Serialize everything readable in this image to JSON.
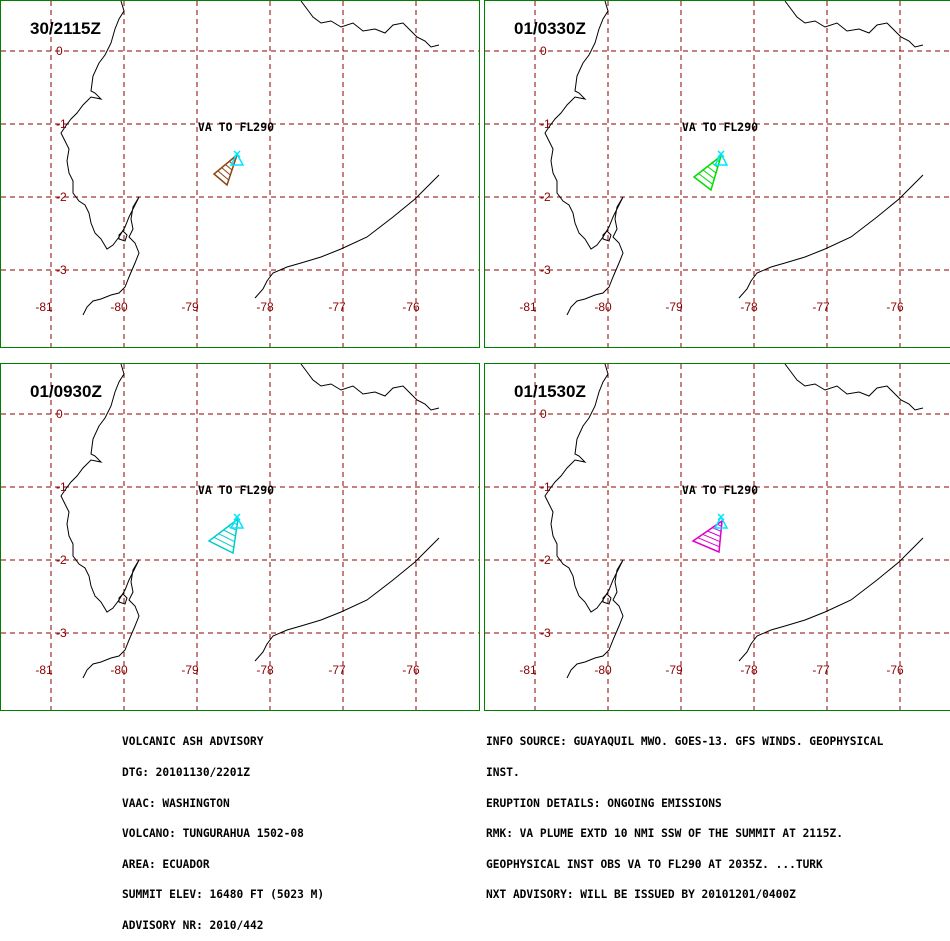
{
  "panels": [
    {
      "time": "30/2115Z",
      "plume_color": "#8b4513",
      "plume_label": "VA TO FL290"
    },
    {
      "time": "01/0330Z",
      "plume_color": "#00dd00",
      "plume_label": "VA TO FL290"
    },
    {
      "time": "01/0930Z",
      "plume_color": "#00cccc",
      "plume_label": "VA TO FL290"
    },
    {
      "time": "01/1530Z",
      "plume_color": "#dd00cc",
      "plume_label": "VA TO FL290"
    }
  ],
  "map": {
    "lat_labels": [
      "0",
      "-1",
      "-2",
      "-3"
    ],
    "lon_labels": [
      "-81",
      "-80",
      "-79",
      "-78",
      "-77",
      "-76"
    ],
    "grid_color": "#8b0000",
    "coast_color": "#000000",
    "vent_color": "#00e5ff"
  },
  "advisory_left": [
    "VOLCANIC ASH ADVISORY",
    "DTG: 20101130/2201Z",
    "VAAC: WASHINGTON",
    "VOLCANO: TUNGURAHUA 1502-08",
    "AREA: ECUADOR",
    "SUMMIT ELEV: 16480 FT (5023 M)",
    "ADVISORY NR: 2010/442"
  ],
  "advisory_right": [
    "INFO SOURCE: GUAYAQUIL MWO. GOES-13. GFS WINDS. GEOPHYSICAL",
    "INST.",
    "ERUPTION DETAILS: ONGOING EMISSIONS",
    "RMK: VA PLUME EXTD 10 NMI SSW OF THE SUMMIT AT 2115Z.",
    "GEOPHYSICAL INST OBS VA TO FL290 AT 2035Z. ...TURK",
    "NXT ADVISORY: WILL BE ISSUED BY 20101201/0400Z"
  ]
}
